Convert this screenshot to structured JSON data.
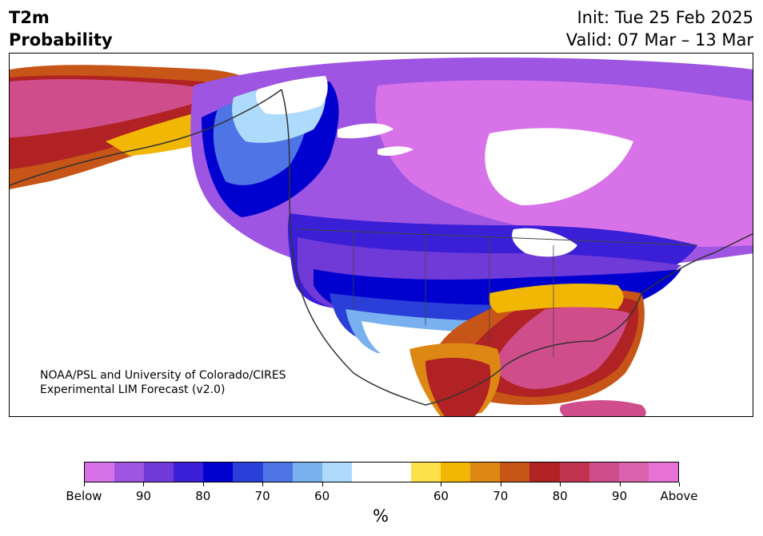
{
  "title": {
    "line1": "T2m",
    "line2": "Probability"
  },
  "dates": {
    "init": "Init: Tue 25 Feb 2025",
    "valid": "Valid: 07 Mar – 13 Mar"
  },
  "credit": {
    "line1": "NOAA/PSL and University of Colorado/CIRES",
    "line2": "Experimental LIM Forecast (v2.0)"
  },
  "colorbar": {
    "colors": [
      "#d872e8",
      "#9d55e2",
      "#6f3ad8",
      "#3a1fd6",
      "#0000cf",
      "#2a3fd8",
      "#4e74e6",
      "#78b0f0",
      "#aedafc",
      "#ffffff",
      "#ffffff",
      "#fde04a",
      "#f2b705",
      "#dd8714",
      "#c75517",
      "#b02224",
      "#c1334f",
      "#d04d8c",
      "#da62ad",
      "#e672d6"
    ],
    "labels": [
      "Below",
      "90",
      "80",
      "70",
      "60",
      "60",
      "70",
      "80",
      "90",
      "Above"
    ],
    "unit": "%"
  },
  "map": {
    "theme": "North America probability map",
    "regions": [
      "Alaska warm",
      "Canada cold",
      "US North cold",
      "US Southeast warm",
      "Caribbean warm"
    ]
  }
}
